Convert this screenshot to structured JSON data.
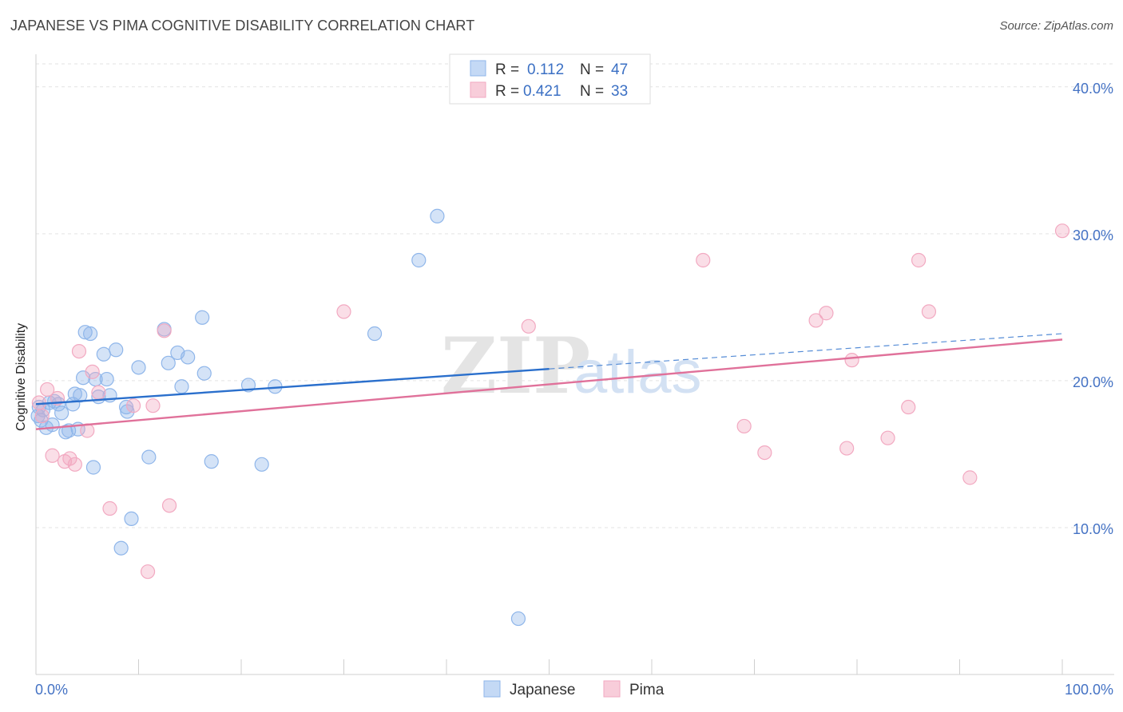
{
  "title": "JAPANESE VS PIMA COGNITIVE DISABILITY CORRELATION CHART",
  "source": "Source: ZipAtlas.com",
  "watermark": {
    "zip": "ZIP",
    "atlas": "atlas"
  },
  "chart_data": {
    "type": "scatter",
    "ylabel": "Cognitive Disability",
    "xlim": [
      0,
      100
    ],
    "ylim": [
      0,
      42
    ],
    "x_ticks": [
      "0.0%",
      "100.0%"
    ],
    "y_ticks": [
      {
        "value": 10,
        "label": "10.0%"
      },
      {
        "value": 20,
        "label": "20.0%"
      },
      {
        "value": 30,
        "label": "30.0%"
      },
      {
        "value": 40,
        "label": "40.0%"
      }
    ],
    "legend": {
      "placement": "top-center",
      "rows": [
        {
          "r_label": "R =",
          "r_value": "0.112",
          "n_label": "N =",
          "n_value": "47"
        },
        {
          "r_label": "R =",
          "r_value": "0.421",
          "n_label": "N =",
          "n_value": "33"
        }
      ]
    },
    "series": [
      {
        "name": "Japanese",
        "color": "#8fb6ea",
        "line_color": "#2a6fcc",
        "trend": {
          "x0": 0,
          "y0": 18.4,
          "x1": 50,
          "y1": 20.8,
          "x_dash_end": 100,
          "y_dash_end": 23.2
        },
        "points": [
          [
            0.3,
            18.2
          ],
          [
            0.5,
            17.3
          ],
          [
            0.7,
            18.0
          ],
          [
            1.0,
            16.8
          ],
          [
            1.3,
            18.5
          ],
          [
            1.6,
            17.0
          ],
          [
            1.8,
            18.6
          ],
          [
            2.2,
            18.4
          ],
          [
            2.5,
            17.8
          ],
          [
            2.9,
            16.5
          ],
          [
            3.2,
            16.6
          ],
          [
            3.6,
            18.4
          ],
          [
            3.8,
            19.1
          ],
          [
            4.1,
            16.7
          ],
          [
            4.3,
            19.0
          ],
          [
            4.6,
            20.2
          ],
          [
            4.8,
            23.3
          ],
          [
            5.3,
            23.2
          ],
          [
            5.6,
            14.1
          ],
          [
            5.8,
            20.1
          ],
          [
            6.1,
            18.9
          ],
          [
            6.6,
            21.8
          ],
          [
            6.9,
            20.1
          ],
          [
            7.2,
            19.0
          ],
          [
            7.8,
            22.1
          ],
          [
            8.3,
            8.6
          ],
          [
            8.8,
            18.2
          ],
          [
            8.9,
            17.9
          ],
          [
            9.3,
            10.6
          ],
          [
            10.0,
            20.9
          ],
          [
            11.0,
            14.8
          ],
          [
            12.5,
            23.5
          ],
          [
            12.9,
            21.2
          ],
          [
            13.8,
            21.9
          ],
          [
            14.2,
            19.6
          ],
          [
            14.8,
            21.6
          ],
          [
            16.2,
            24.3
          ],
          [
            16.4,
            20.5
          ],
          [
            17.1,
            14.5
          ],
          [
            20.7,
            19.7
          ],
          [
            22.0,
            14.3
          ],
          [
            23.3,
            19.6
          ],
          [
            33.0,
            23.2
          ],
          [
            37.3,
            28.2
          ],
          [
            39.1,
            31.2
          ],
          [
            47.0,
            3.8
          ],
          [
            0.2,
            17.6
          ]
        ]
      },
      {
        "name": "Pima",
        "color": "#f2a9c1",
        "line_color": "#e0719a",
        "trend": {
          "x0": 0,
          "y0": 16.7,
          "x1": 100,
          "y1": 22.8
        },
        "points": [
          [
            0.3,
            18.5
          ],
          [
            0.6,
            17.6
          ],
          [
            1.1,
            19.4
          ],
          [
            1.6,
            14.9
          ],
          [
            2.1,
            18.8
          ],
          [
            2.8,
            14.5
          ],
          [
            3.3,
            14.7
          ],
          [
            3.8,
            14.3
          ],
          [
            4.2,
            22.0
          ],
          [
            5.0,
            16.6
          ],
          [
            5.5,
            20.6
          ],
          [
            6.1,
            19.2
          ],
          [
            7.2,
            11.3
          ],
          [
            9.5,
            18.3
          ],
          [
            10.9,
            7.0
          ],
          [
            11.4,
            18.3
          ],
          [
            12.5,
            23.4
          ],
          [
            13.0,
            11.5
          ],
          [
            30.0,
            24.7
          ],
          [
            48.0,
            23.7
          ],
          [
            65.0,
            28.2
          ],
          [
            69.0,
            16.9
          ],
          [
            71.0,
            15.1
          ],
          [
            76.0,
            24.1
          ],
          [
            77.0,
            24.6
          ],
          [
            79.0,
            15.4
          ],
          [
            79.5,
            21.4
          ],
          [
            83.0,
            16.1
          ],
          [
            85.0,
            18.2
          ],
          [
            86.0,
            28.2
          ],
          [
            87.0,
            24.7
          ],
          [
            91.0,
            13.4
          ],
          [
            100.0,
            30.2
          ]
        ]
      }
    ]
  }
}
